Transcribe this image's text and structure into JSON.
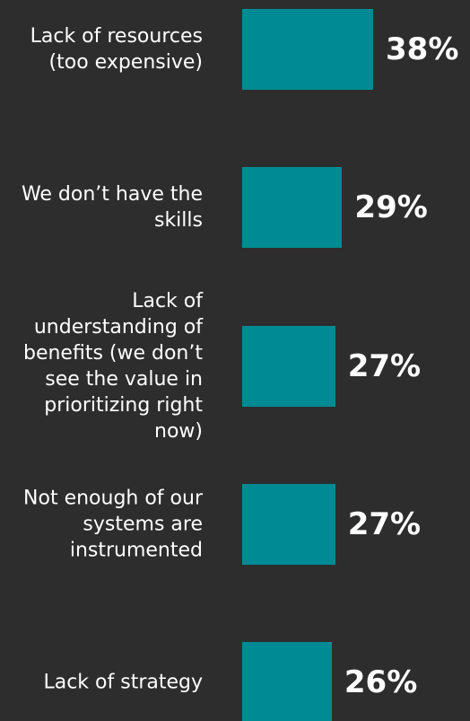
{
  "chart_data": {
    "type": "bar",
    "orientation": "horizontal",
    "categories": [
      "Lack of resources (too expensive)",
      "We don’t have the skills",
      "Lack of understanding of benefits (we don’t see the value in prioritizing right now)",
      "Not enough of our systems are instrumented",
      "Lack of strategy"
    ],
    "values": [
      38,
      29,
      27,
      27,
      26
    ],
    "value_labels": [
      "38%",
      "29%",
      "27%",
      "27%",
      "26%"
    ],
    "xlim": [
      0,
      38
    ],
    "grid": false,
    "legend": "none"
  },
  "colors": {
    "background": "#2d2d2d",
    "bar": "#008b94",
    "text": "#ffffff"
  }
}
